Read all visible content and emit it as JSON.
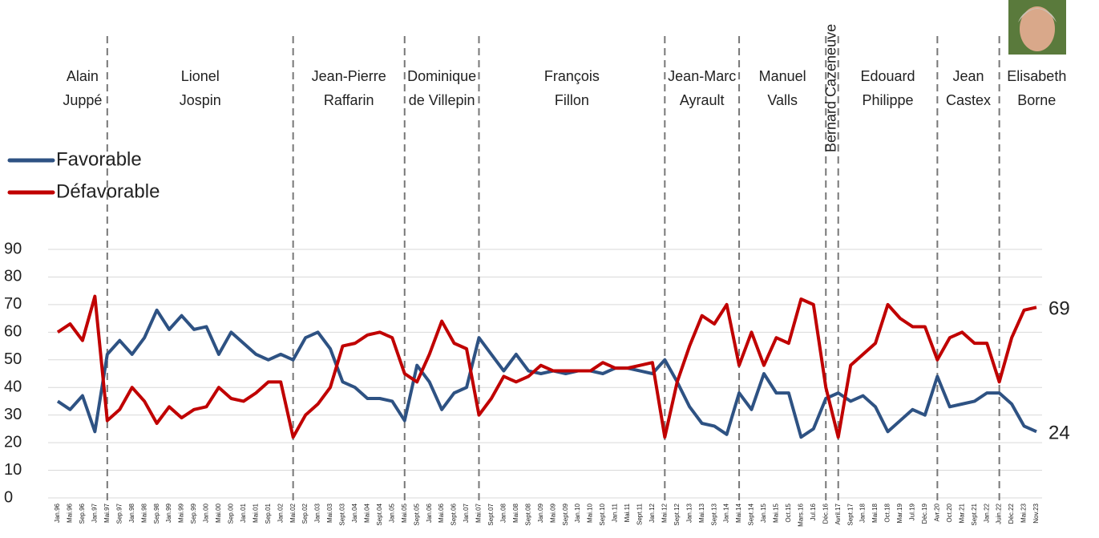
{
  "chart_data": {
    "type": "line",
    "categories": [
      "Jan.96",
      "Mai.96",
      "Sep.96",
      "Jan.97",
      "Mai.97",
      "Sep.97",
      "Jan.98",
      "Mai.98",
      "Sep.98",
      "Jan.99",
      "Mai.99",
      "Sep.99",
      "Jan.00",
      "Mai.00",
      "Sep.00",
      "Jan.01",
      "Mai.01",
      "Sep.01",
      "Jan.02",
      "Mai.02",
      "Sep.02",
      "Jan.03",
      "Mai.03",
      "Sept.03",
      "Jan.04",
      "Mai.04",
      "Sept.04",
      "Jan.05",
      "Mai.05",
      "Sept.05",
      "Jan.06",
      "Mai.06",
      "Sept.06",
      "Jan.07",
      "Mai.07",
      "Sept.07",
      "Jan.08",
      "Mai.08",
      "Sept.08",
      "Jan.09",
      "Mai.09",
      "Sept.09",
      "Jan.10",
      "Mai.10",
      "Sept.10",
      "Jan.11",
      "Mai.11",
      "Sept.11",
      "Jan.12",
      "Mai.12",
      "Sept.12",
      "Jan.13",
      "Mai.13",
      "Sept.13",
      "Jan.14",
      "Mai.14",
      "Sept.14",
      "Jan.15",
      "Mai.15",
      "Oct.15",
      "Mars.16",
      "Jul.16",
      "Déc.16",
      "Avril.17",
      "Sept.17",
      "Jan.18",
      "Mai.18",
      "Oct.18",
      "Mar.19",
      "Jul.19",
      "Déc.19",
      "Avr.20",
      "Oct.20",
      "Mar.21",
      "Sept.21",
      "Jan.22",
      "Juin.22",
      "Déc.22",
      "Mai.23",
      "Nov.23"
    ],
    "series": [
      {
        "name": "Favorable",
        "color": "#2e5283",
        "values": [
          35,
          32,
          37,
          24,
          52,
          57,
          52,
          58,
          68,
          61,
          66,
          61,
          62,
          52,
          60,
          56,
          52,
          50,
          52,
          50,
          58,
          60,
          54,
          42,
          40,
          36,
          36,
          35,
          28,
          48,
          42,
          32,
          38,
          40,
          58,
          52,
          46,
          52,
          46,
          45,
          46,
          45,
          46,
          46,
          45,
          47,
          47,
          46,
          45,
          50,
          42,
          33,
          27,
          26,
          23,
          38,
          32,
          45,
          38,
          38,
          22,
          25,
          36,
          38,
          35,
          37,
          33,
          24,
          28,
          32,
          30,
          44,
          33,
          34,
          35,
          38,
          38,
          34,
          26,
          24
        ]
      },
      {
        "name": "Défavorable",
        "color": "#c00000",
        "values": [
          60,
          63,
          57,
          73,
          28,
          32,
          40,
          35,
          27,
          33,
          29,
          32,
          33,
          40,
          36,
          35,
          38,
          42,
          42,
          22,
          30,
          34,
          40,
          55,
          56,
          59,
          60,
          58,
          45,
          42,
          52,
          64,
          56,
          54,
          30,
          36,
          44,
          42,
          44,
          48,
          46,
          46,
          46,
          46,
          49,
          47,
          47,
          48,
          49,
          22,
          42,
          55,
          66,
          63,
          70,
          48,
          60,
          48,
          58,
          56,
          72,
          70,
          40,
          22,
          48,
          52,
          56,
          70,
          65,
          62,
          62,
          50,
          58,
          60,
          56,
          56,
          42,
          58,
          68,
          69
        ]
      }
    ],
    "ylim": [
      0,
      90
    ],
    "yticks": [
      0,
      10,
      20,
      30,
      40,
      50,
      60,
      70,
      80,
      90
    ],
    "grid": true,
    "periods": [
      {
        "name": [
          "Alain",
          "Juppé"
        ],
        "start": "Jan.96"
      },
      {
        "name": [
          "Lionel",
          "Jospin"
        ],
        "start": "Mai.97"
      },
      {
        "name": [
          "Jean-Pierre",
          "Raffarin"
        ],
        "start": "Mai.02"
      },
      {
        "name": [
          "Dominique",
          "de Villepin"
        ],
        "start": "Mai.05"
      },
      {
        "name": [
          "François",
          "Fillon"
        ],
        "start": "Mai.07"
      },
      {
        "name": [
          "Jean-Marc",
          "Ayrault"
        ],
        "start": "Mai.12"
      },
      {
        "name": [
          "Manuel",
          "Valls"
        ],
        "start": "Mai.14"
      },
      {
        "name": [
          "Bernard Cazeneuve"
        ],
        "start": "Déc.16"
      },
      {
        "name": [
          "Edouard",
          "Philippe"
        ],
        "start": "Avril.17"
      },
      {
        "name": [
          "Jean",
          "Castex"
        ],
        "start": "Avr.20"
      },
      {
        "name": [
          "Elisabeth",
          "Borne"
        ],
        "start": "Juin.22"
      }
    ]
  }
}
